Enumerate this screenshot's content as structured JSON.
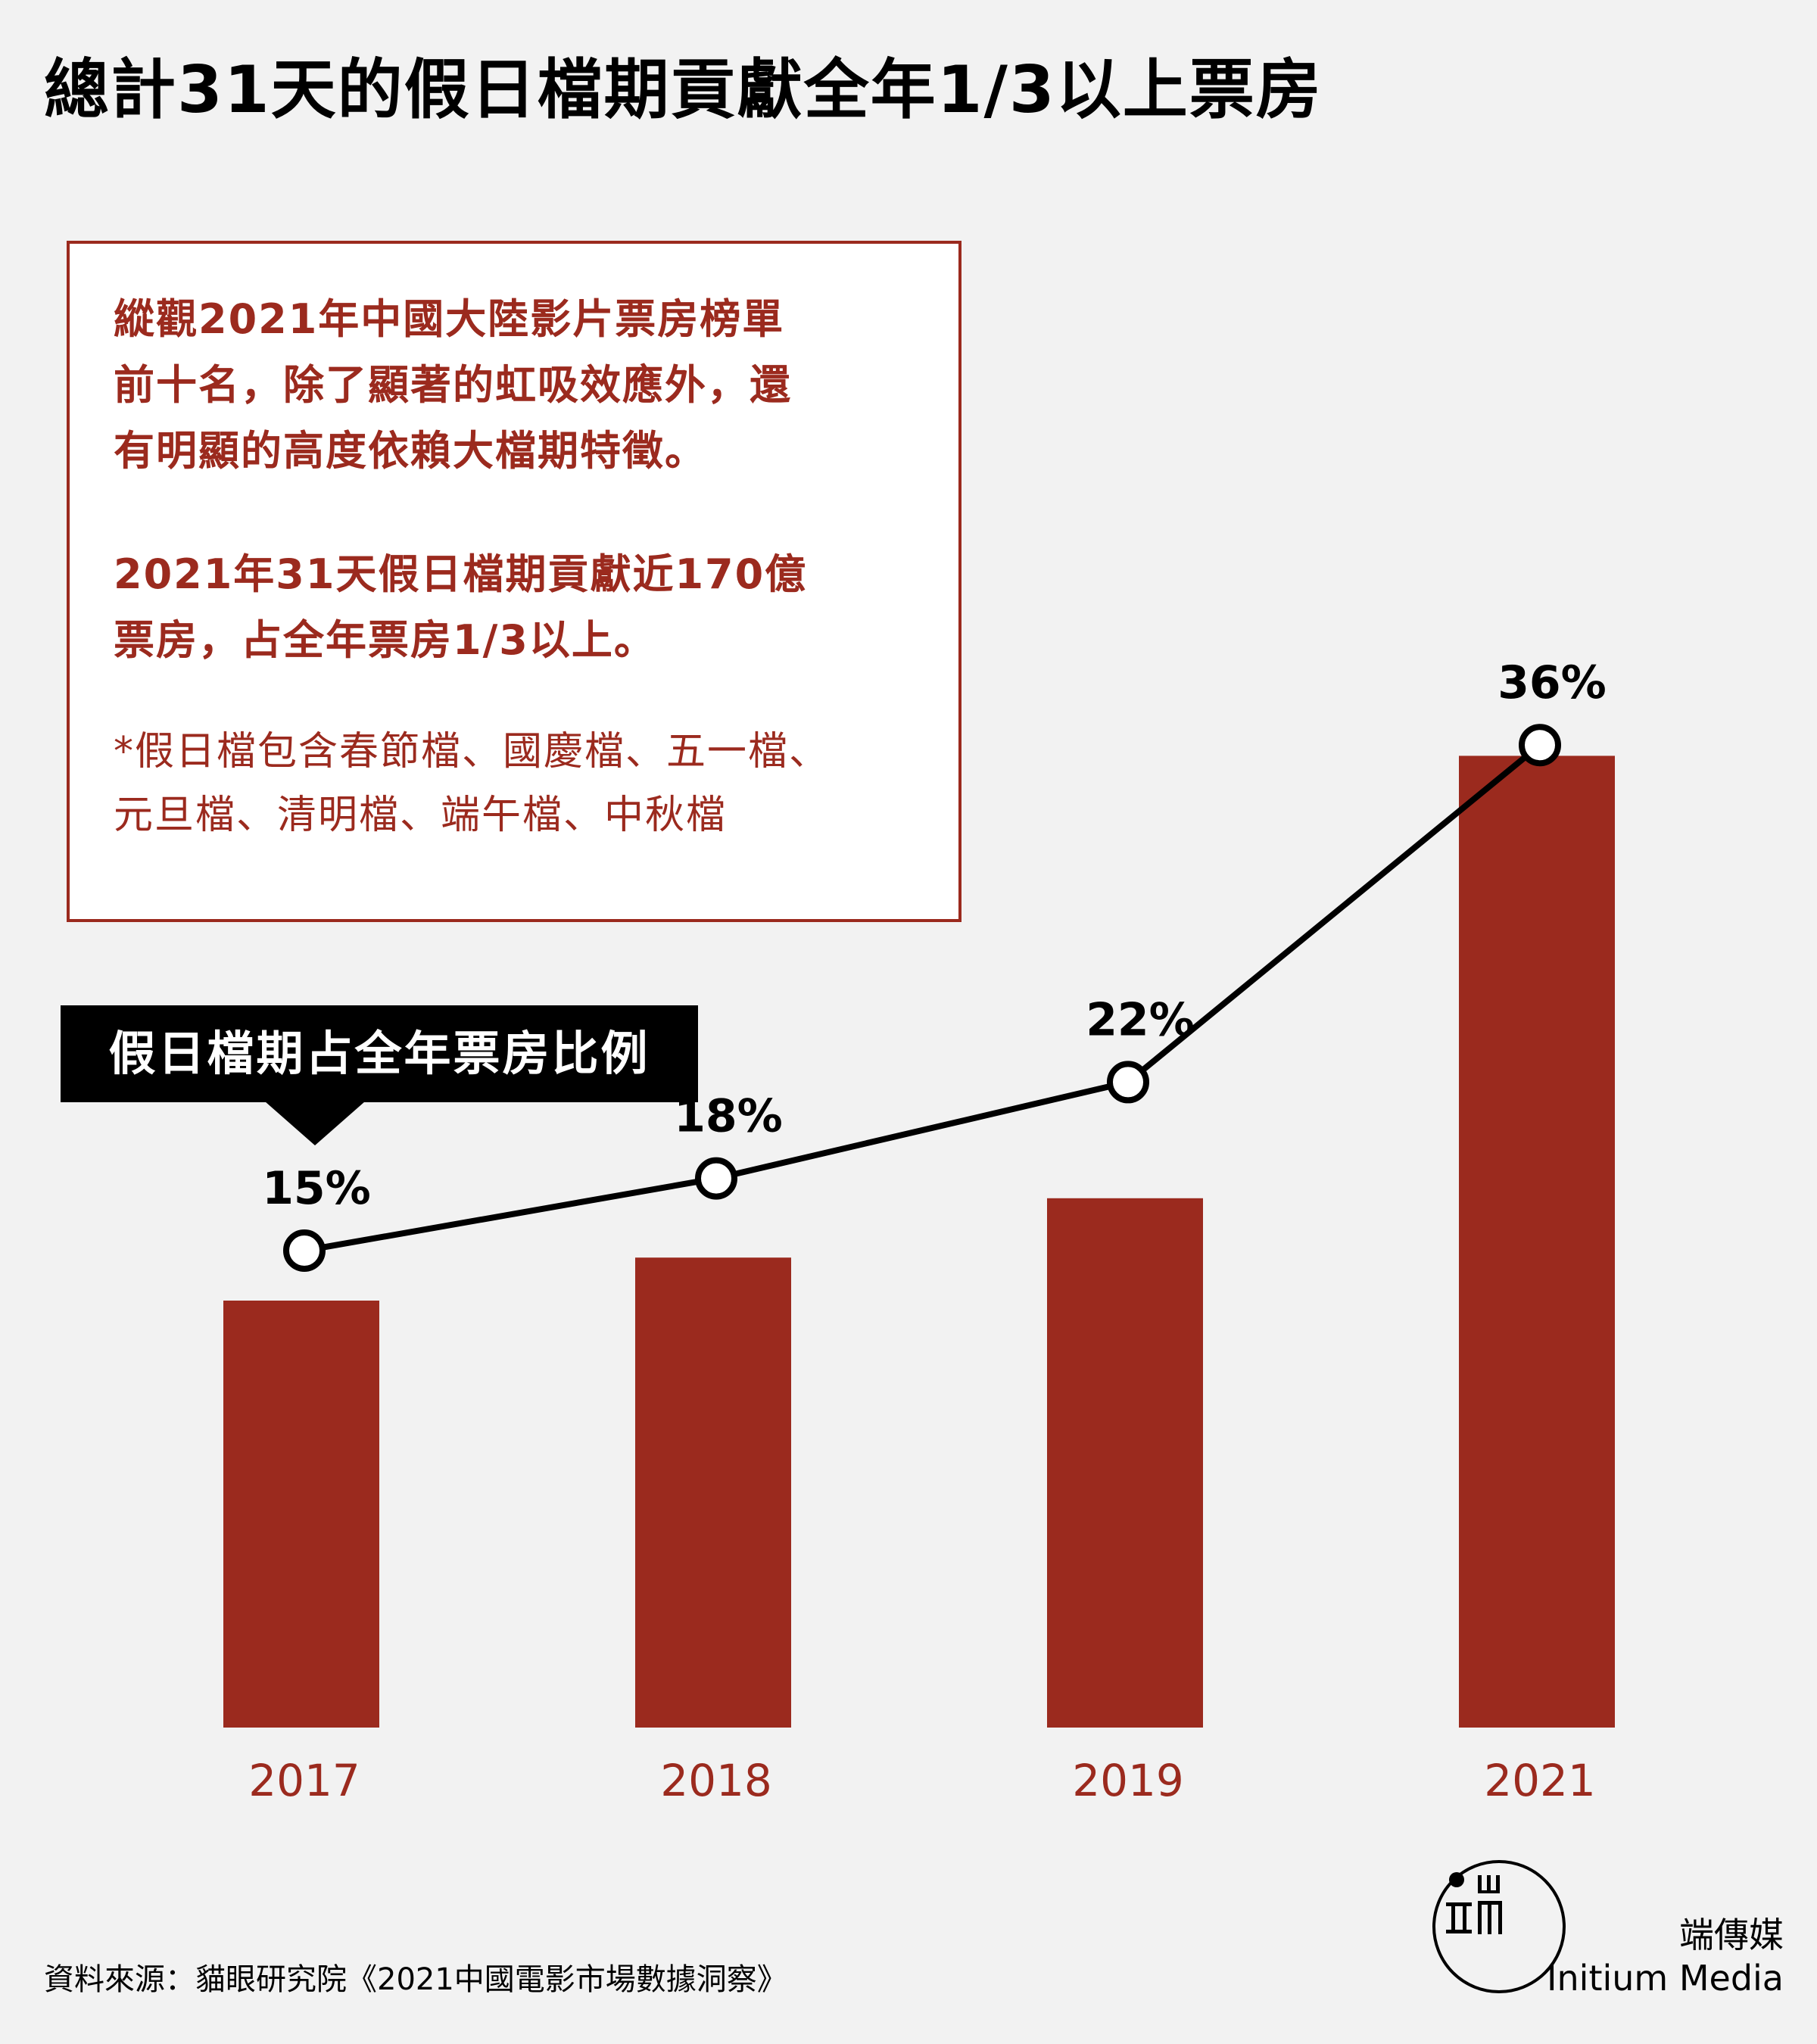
{
  "title": "總計31天的假日檔期貢獻全年1/3以上票房",
  "note": {
    "paragraph1": [
      "縱觀2021年中國大陸影片票房榜單",
      "前十名，除了顯著的虹吸效應外，還",
      "有明顯的高度依賴大檔期特徵。"
    ],
    "paragraph2": [
      "2021年31天假日檔期貢獻近170億",
      "票房，占全年票房1/3以上。"
    ],
    "footnote": [
      "*假日檔包含春節檔、國慶檔、五一檔、",
      "元旦檔、清明檔、端午檔、中秋檔"
    ]
  },
  "legend_label": "假日檔期占全年票房比例",
  "colors": {
    "bar": "#9b2a1e",
    "line": "#000000",
    "text_red": "#9b2a1e",
    "background": "#f2f2f2"
  },
  "chart_data": {
    "type": "bar",
    "categories": [
      "2017",
      "2018",
      "2019",
      "2021"
    ],
    "values": [
      15,
      18,
      22,
      36
    ],
    "data_labels": [
      "15%",
      "18%",
      "22%",
      "36%"
    ],
    "overlay": "line with circle markers on same values",
    "title": "總計31天的假日檔期貢獻全年1/3以上票房",
    "xlabel": "",
    "ylabel": "",
    "ylim": [
      0,
      40
    ],
    "grid": false
  },
  "source": "資料來源：貓眼研究院《2021中國電影市場數據洞察》",
  "brand": {
    "cn": "端傳媒",
    "en": "Initium Media",
    "logo_icon": "initium-logo-icon"
  }
}
